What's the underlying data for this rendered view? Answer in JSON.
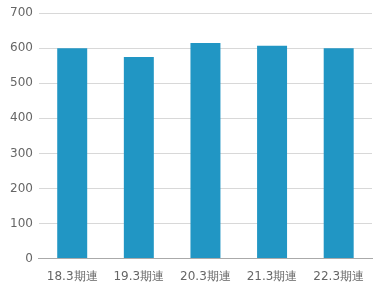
{
  "chart_data": {
    "type": "bar",
    "categories": [
      "18.3期連",
      "19.3期連",
      "20.3期連",
      "21.3期連",
      "22.3期連"
    ],
    "values": [
      600,
      575,
      615,
      607,
      600
    ],
    "color": "#2196c4",
    "ylim": [
      0,
      700
    ],
    "yticks": [
      0,
      100,
      200,
      300,
      400,
      500,
      600,
      700
    ],
    "grid": true
  }
}
